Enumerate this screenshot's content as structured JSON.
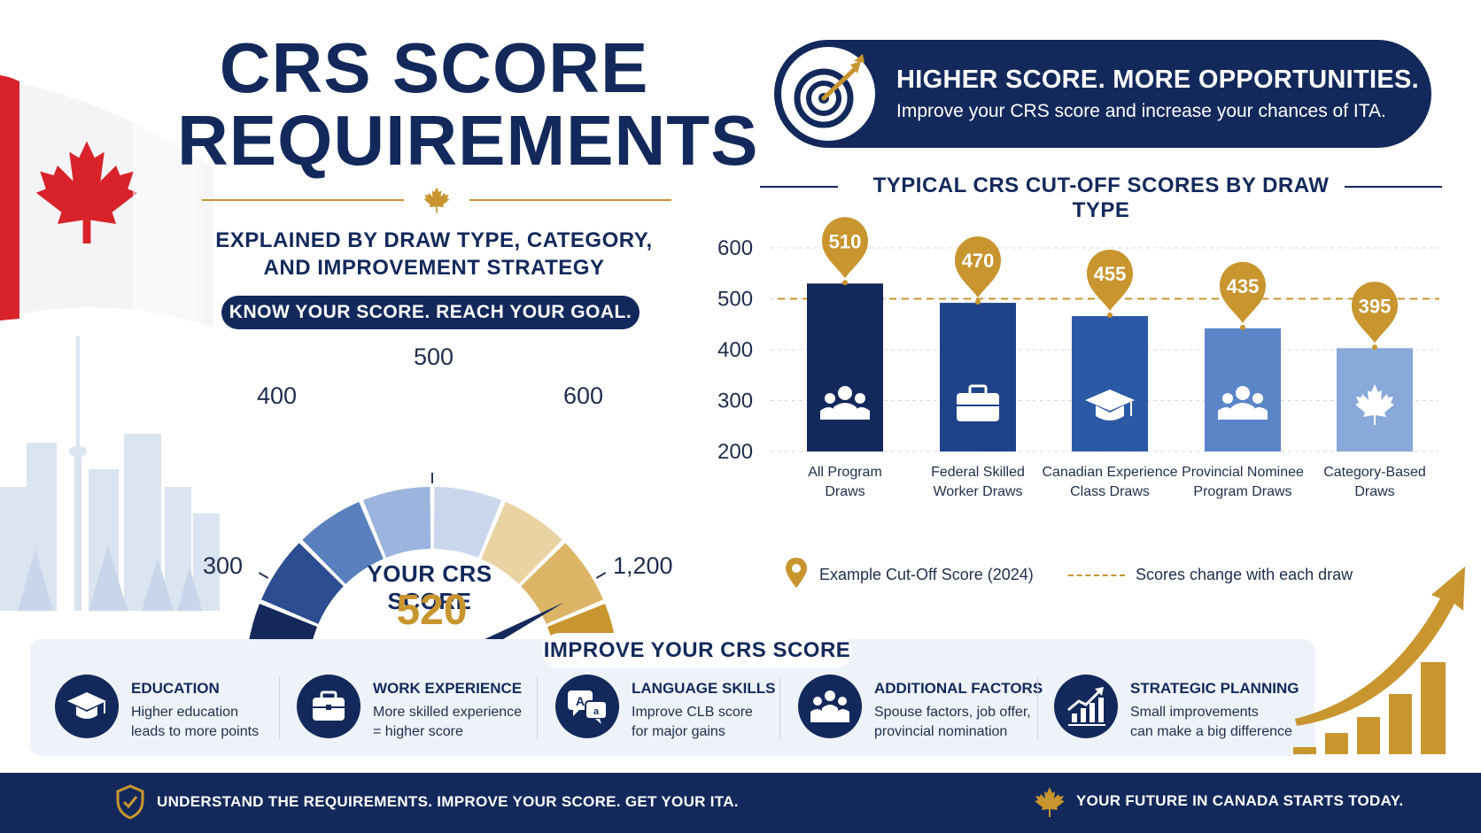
{
  "title": {
    "line1": "CRS SCORE",
    "line2": "REQUIREMENTS"
  },
  "subtitle": {
    "line1": "EXPLAINED BY DRAW TYPE, CATEGORY,",
    "line2": "AND IMPROVEMENT STRATEGY"
  },
  "tagline": "KNOW YOUR SCORE. REACH YOUR GOAL.",
  "gauge": {
    "ticks": {
      "min": "300",
      "t400": "400",
      "t500": "500",
      "t600": "600",
      "max": "1,200"
    },
    "score_label": "YOUR CRS SCORE",
    "score_value": "520",
    "colors": [
      "#14285a",
      "#2c4d8f",
      "#5a7fbd",
      "#9bb4dd",
      "#c9d6ec",
      "#ead3a2",
      "#dcb466",
      "#c8952f"
    ]
  },
  "banner": {
    "title": "HIGHER SCORE. MORE OPPORTUNITIES.",
    "subtitle": "Improve your CRS score and increase your chances of ITA.",
    "icon": "target-arrow-icon"
  },
  "chart_data": {
    "type": "bar",
    "title": "TYPICAL CRS CUT-OFF SCORES BY DRAW TYPE",
    "categories": [
      [
        "All Program",
        "Draws"
      ],
      [
        "Federal Skilled",
        "Worker Draws"
      ],
      [
        "Canadian Experience",
        "Class Draws"
      ],
      [
        "Provincial Nominee",
        "Program Draws"
      ],
      [
        "Category-Based",
        "Draws"
      ]
    ],
    "values": [
      510,
      470,
      455,
      435,
      395
    ],
    "labels": [
      "510",
      "470",
      "455",
      "435",
      "395"
    ],
    "icons": [
      "group-icon",
      "briefcase-icon",
      "graduation-cap-icon",
      "group-icon",
      "maple-leaf-icon"
    ],
    "colors": [
      "#13295b",
      "#1f4289",
      "#2c59a6",
      "#5a86c8",
      "#88a9da"
    ],
    "y_ticks": [
      "600",
      "500",
      "400",
      "300",
      "200"
    ],
    "ylim": [
      200,
      600
    ],
    "reference_line": 500,
    "grid": true,
    "legend": {
      "pin_label": "Example Cut-Off Score (2024)",
      "dash_label": "Scores change with each draw"
    }
  },
  "improve": {
    "title": "IMPROVE YOUR CRS SCORE",
    "items": [
      {
        "heading": "EDUCATION",
        "line1": "Higher education",
        "line2": "leads to more points",
        "icon": "graduation-cap-icon"
      },
      {
        "heading": "WORK EXPERIENCE",
        "line1": "More skilled experience",
        "line2": "= higher score",
        "icon": "briefcase-icon"
      },
      {
        "heading": "LANGUAGE SKILLS",
        "line1": "Improve CLB score",
        "line2": "for major gains",
        "icon": "language-bubbles-icon"
      },
      {
        "heading": "ADDITIONAL FACTORS",
        "line1": "Spouse factors, job offer,",
        "line2": "provincial nomination",
        "icon": "people-icon"
      },
      {
        "heading": "STRATEGIC PLANNING",
        "line1": "Small improvements",
        "line2": "can make a big difference",
        "icon": "growth-chart-icon"
      }
    ]
  },
  "footer": {
    "left": "UNDERSTAND THE REQUIREMENTS. IMPROVE YOUR SCORE. GET YOUR ITA.",
    "right": "YOUR FUTURE IN CANADA STARTS TODAY."
  }
}
